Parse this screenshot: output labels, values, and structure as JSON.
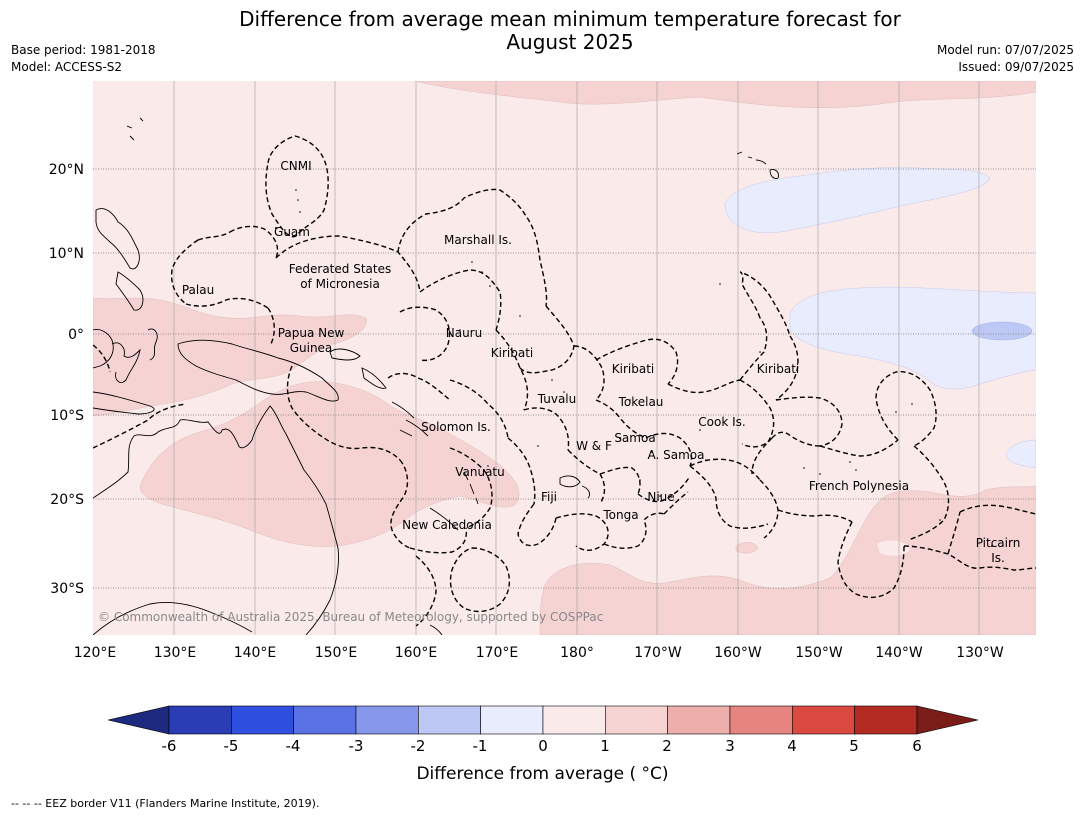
{
  "title_line1": "Difference from average mean minimum temperature forecast for",
  "title_line2": "August 2025",
  "base_period": "Base period: 1981-2018",
  "model": "Model: ACCESS-S2",
  "model_run": "Model run: 07/07/2025",
  "issued": "Issued: 09/07/2025",
  "copyright": "© Commonwealth of Australia 2025, Bureau of Meteorology, supported by COSPPac",
  "lat_labels": [
    "20°N",
    "10°N",
    "0°",
    "10°S",
    "20°S",
    "30°S"
  ],
  "lon_labels": [
    "120°E",
    "130°E",
    "140°E",
    "150°E",
    "160°E",
    "170°E",
    "180°",
    "170°W",
    "160°W",
    "150°W",
    "140°W",
    "130°W"
  ],
  "places": [
    {
      "name": "CNMI"
    },
    {
      "name": "Guam"
    },
    {
      "name": "Marshall Is."
    },
    {
      "name": "Federated States"
    },
    {
      "name": "of Micronesia"
    },
    {
      "name": "Palau"
    },
    {
      "name": "Papua New"
    },
    {
      "name": "Guinea"
    },
    {
      "name": "Nauru"
    },
    {
      "name": "Kiribati"
    },
    {
      "name": "Kiribati"
    },
    {
      "name": "Kiribati"
    },
    {
      "name": "Tuvalu"
    },
    {
      "name": "Tokelau"
    },
    {
      "name": "Solomon Is."
    },
    {
      "name": "Samoa"
    },
    {
      "name": "W & F"
    },
    {
      "name": "A. Samoa"
    },
    {
      "name": "Cook Is."
    },
    {
      "name": "Vanuatu"
    },
    {
      "name": "Fiji"
    },
    {
      "name": "Niue"
    },
    {
      "name": "Tonga"
    },
    {
      "name": "French Polynesia"
    },
    {
      "name": "New Caledonia"
    },
    {
      "name": "Pitcairn"
    },
    {
      "name": "Is."
    }
  ],
  "colorbar": {
    "ticks": [
      "-6",
      "-5",
      "-4",
      "-3",
      "-2",
      "-1",
      "0",
      "1",
      "2",
      "3",
      "4",
      "5",
      "6"
    ],
    "colors": [
      "#1d2a80",
      "#2a3db4",
      "#2f4fe0",
      "#5a72e6",
      "#8797ec",
      "#bec8f4",
      "#e8ecfc",
      "#fbeaea",
      "#f6d3d3",
      "#eeafac",
      "#e6847f",
      "#db4a40",
      "#b22a22",
      "#7a1c18"
    ],
    "title": "Difference from average ( °C)"
  },
  "footer": "--  --  -- EEZ border V11 (Flanders Marine Institute, 2019)."
}
